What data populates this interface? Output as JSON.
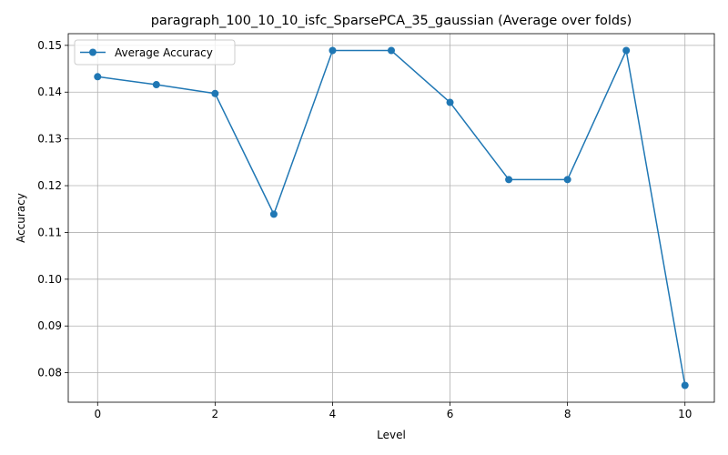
{
  "chart_data": {
    "type": "line",
    "title": "paragraph_100_10_10_isfc_SparsePCA_35_gaussian (Average over folds)",
    "xlabel": "Level",
    "ylabel": "Accuracy",
    "x": [
      0,
      1,
      2,
      3,
      4,
      5,
      6,
      7,
      8,
      9,
      10
    ],
    "series": [
      {
        "name": "Average Accuracy",
        "color": "#1f77b4",
        "marker": "circle",
        "values": [
          0.1433,
          0.1416,
          0.1397,
          0.1139,
          0.1489,
          0.1489,
          0.1378,
          0.1213,
          0.1213,
          0.1489,
          0.0773
        ]
      }
    ],
    "xlim": [
      -0.5,
      10.5
    ],
    "ylim": [
      0.0737,
      0.1525
    ],
    "xticks": [
      0,
      2,
      4,
      6,
      8,
      10
    ],
    "xtick_labels": [
      "0",
      "2",
      "4",
      "6",
      "8",
      "10"
    ],
    "yticks": [
      0.08,
      0.09,
      0.1,
      0.11,
      0.12,
      0.13,
      0.14,
      0.15
    ],
    "ytick_labels": [
      "0.08",
      "0.09",
      "0.10",
      "0.11",
      "0.12",
      "0.13",
      "0.14",
      "0.15"
    ],
    "grid": true,
    "legend_position": "top-left"
  }
}
